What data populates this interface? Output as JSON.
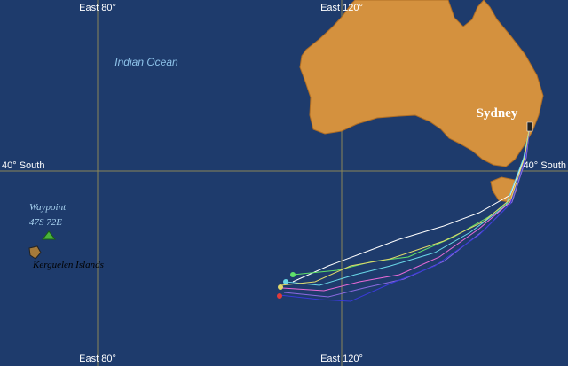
{
  "grid": {
    "meridians": [
      {
        "label_top": "East 80°",
        "label_bottom": "East 80°"
      },
      {
        "label_top": "East 120°",
        "label_bottom": "East 120°"
      }
    ],
    "parallel": {
      "label_left": "40° South",
      "label_right": "40° South"
    }
  },
  "places": {
    "ocean": "Indian Ocean",
    "city": "Sydney",
    "waypoint_title": "Waypoint",
    "waypoint_coords": "47S 72E",
    "islands": "Kerguelen Islands"
  }
}
